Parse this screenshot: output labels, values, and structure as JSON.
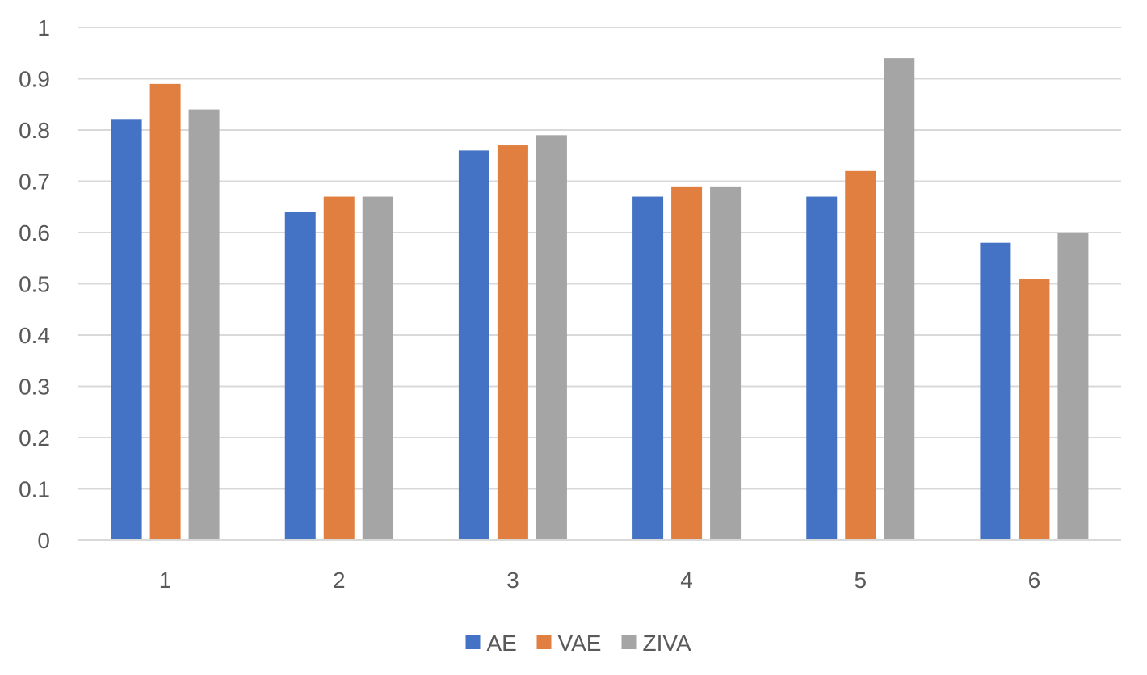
{
  "chart_data": {
    "type": "bar",
    "title": "",
    "xlabel": "",
    "ylabel": "",
    "categories": [
      "1",
      "2",
      "3",
      "4",
      "5",
      "6"
    ],
    "series": [
      {
        "name": "AE",
        "color": "#4472c4",
        "values": [
          0.82,
          0.64,
          0.76,
          0.67,
          0.67,
          0.58
        ]
      },
      {
        "name": "VAE",
        "color": "#e07f3f",
        "values": [
          0.89,
          0.67,
          0.77,
          0.69,
          0.72,
          0.51
        ]
      },
      {
        "name": "ZIVA",
        "color": "#a5a5a5",
        "values": [
          0.84,
          0.67,
          0.79,
          0.69,
          0.94,
          0.6
        ]
      }
    ],
    "ylim": [
      0,
      1
    ],
    "yticks": [
      "0",
      "0.1",
      "0.2",
      "0.3",
      "0.4",
      "0.5",
      "0.6",
      "0.7",
      "0.8",
      "0.9",
      "1"
    ],
    "grid": true,
    "legend_position": "bottom"
  }
}
